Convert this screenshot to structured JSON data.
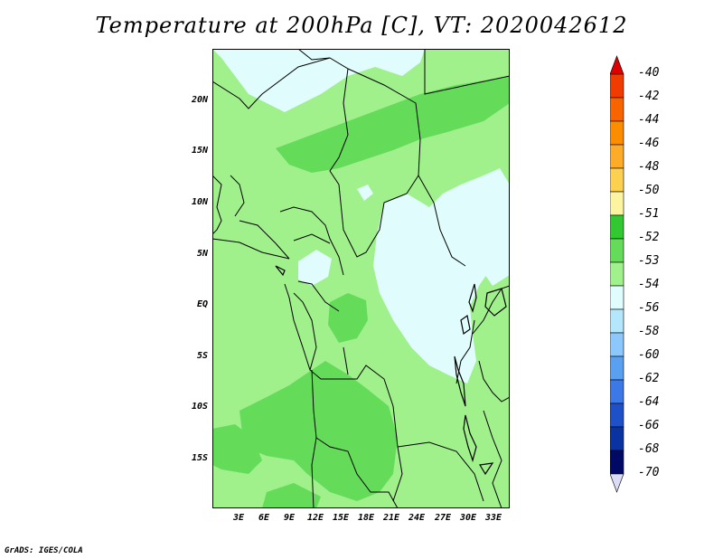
{
  "title": "Temperature at 200hPa [C], VT: 2020042612",
  "credit": "GrADS: IGES/COLA",
  "map": {
    "lat_labels": [
      "20N",
      "15N",
      "10N",
      "5N",
      "EQ",
      "5S",
      "10S",
      "15S"
    ],
    "lon_labels": [
      "3E",
      "6E",
      "9E",
      "12E",
      "15E",
      "18E",
      "21E",
      "24E",
      "27E",
      "30E",
      "33E"
    ]
  },
  "colorbar": {
    "labels": [
      "-40",
      "-42",
      "-44",
      "-46",
      "-48",
      "-50",
      "-51",
      "-52",
      "-53",
      "-54",
      "-56",
      "-58",
      "-60",
      "-62",
      "-64",
      "-66",
      "-68",
      "-70"
    ],
    "colors": [
      "#dc0000",
      "#f03c00",
      "#f86400",
      "#fc8c00",
      "#fcac28",
      "#fcd050",
      "#fcf4a0",
      "#32c832",
      "#64dc5a",
      "#a0f08c",
      "#e0fcfc",
      "#b4e6fc",
      "#8cc8fc",
      "#5aa0f0",
      "#3c78e6",
      "#1e50c8",
      "#0a32a0",
      "#000a64",
      "#dcdcf8"
    ],
    "upper_arrow_color": "#dc0000",
    "lower_arrow_color": "#dcdcf8"
  },
  "field_colors": {
    "minus_54_to_56": "#e0fcfc",
    "minus_53_to_54": "#a0f08c",
    "minus_52_to_53": "#64dc5a"
  }
}
